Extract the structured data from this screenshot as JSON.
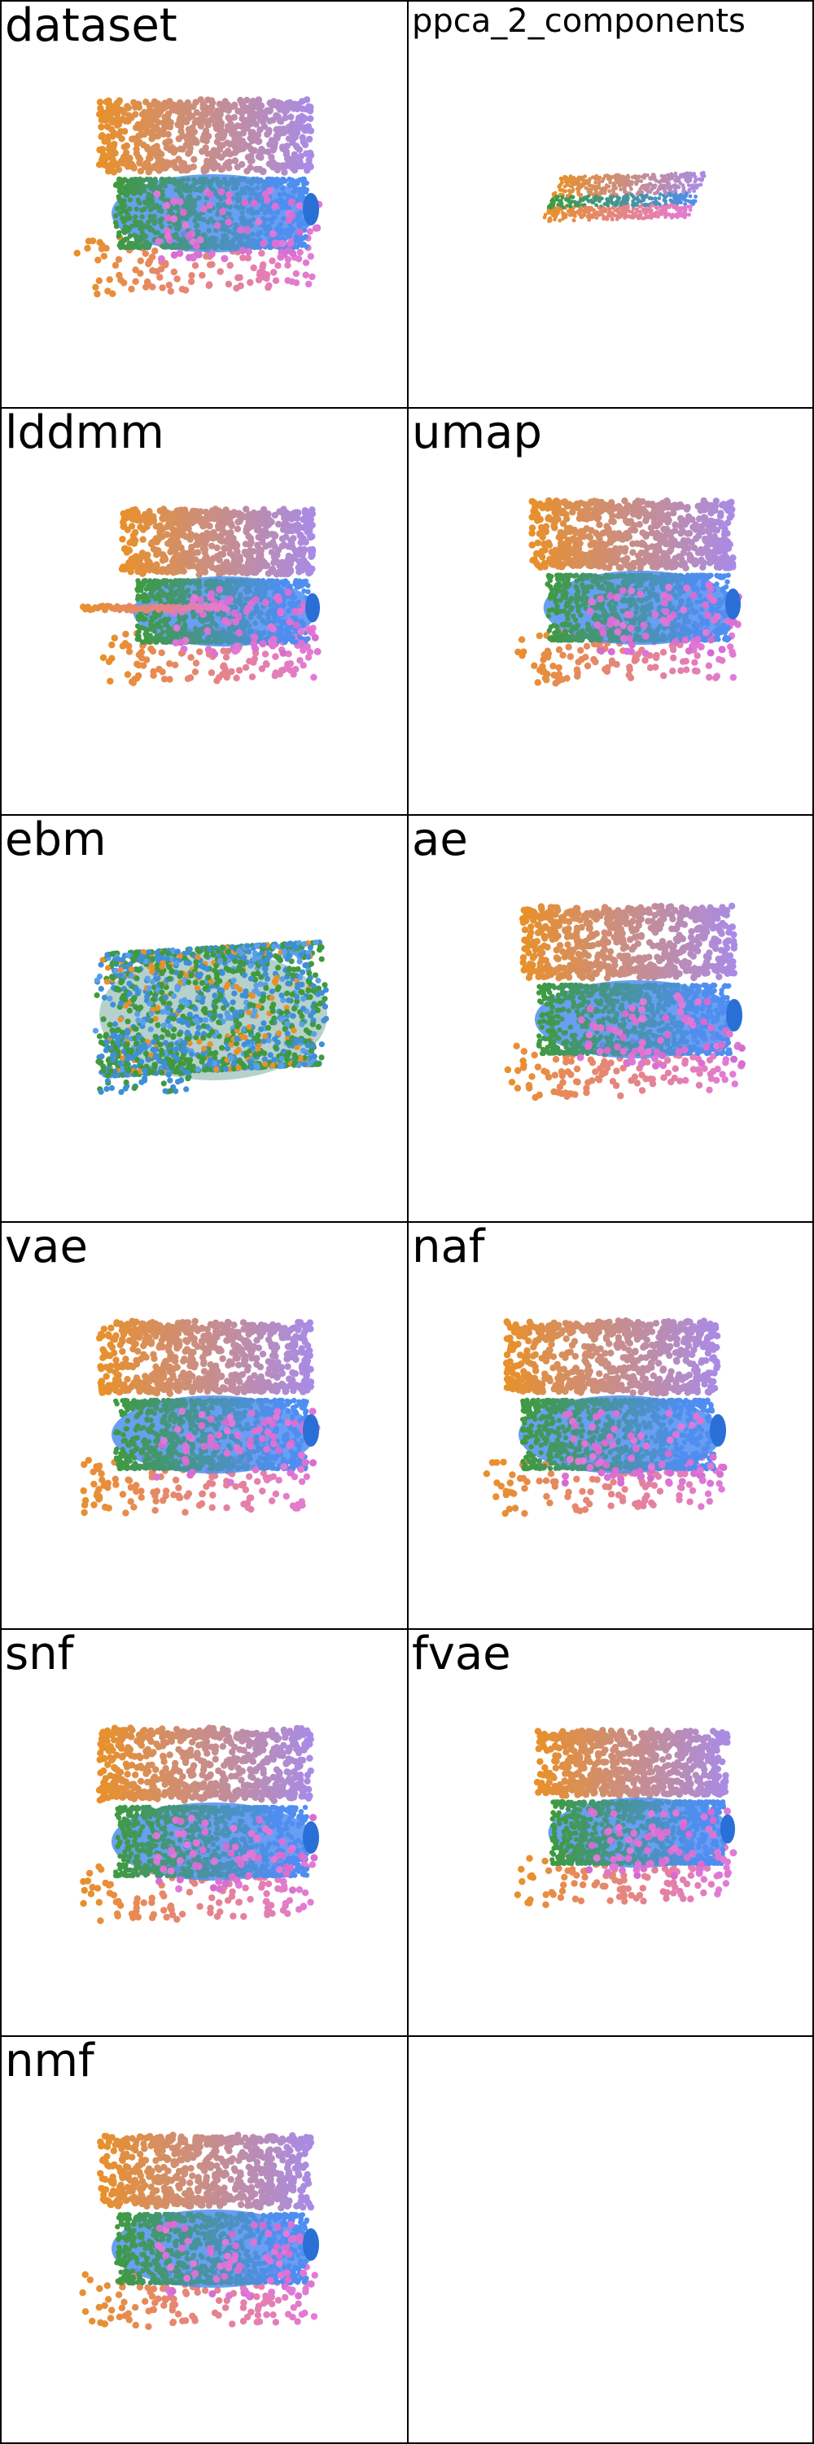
{
  "panels": [
    {
      "title": "dataset",
      "variant": "roll"
    },
    {
      "title": "ppca_2_components",
      "variant": "plane"
    },
    {
      "title": "lddmm",
      "variant": "lddmm"
    },
    {
      "title": "umap",
      "variant": "umap"
    },
    {
      "title": "ebm",
      "variant": "ebm"
    },
    {
      "title": "ae",
      "variant": "ae"
    },
    {
      "title": "vae",
      "variant": "roll"
    },
    {
      "title": "naf",
      "variant": "roll"
    },
    {
      "title": "snf",
      "variant": "roll"
    },
    {
      "title": "fvae",
      "variant": "fvae"
    },
    {
      "title": "nmf",
      "variant": "roll"
    },
    {
      "title": "",
      "variant": "empty"
    }
  ],
  "colors": {
    "orange": "#e8902a",
    "pink": "#e27ad8",
    "purple": "#a98be6",
    "blue": "#4f8ef0",
    "green": "#3f9a3f",
    "border": "#000000"
  }
}
